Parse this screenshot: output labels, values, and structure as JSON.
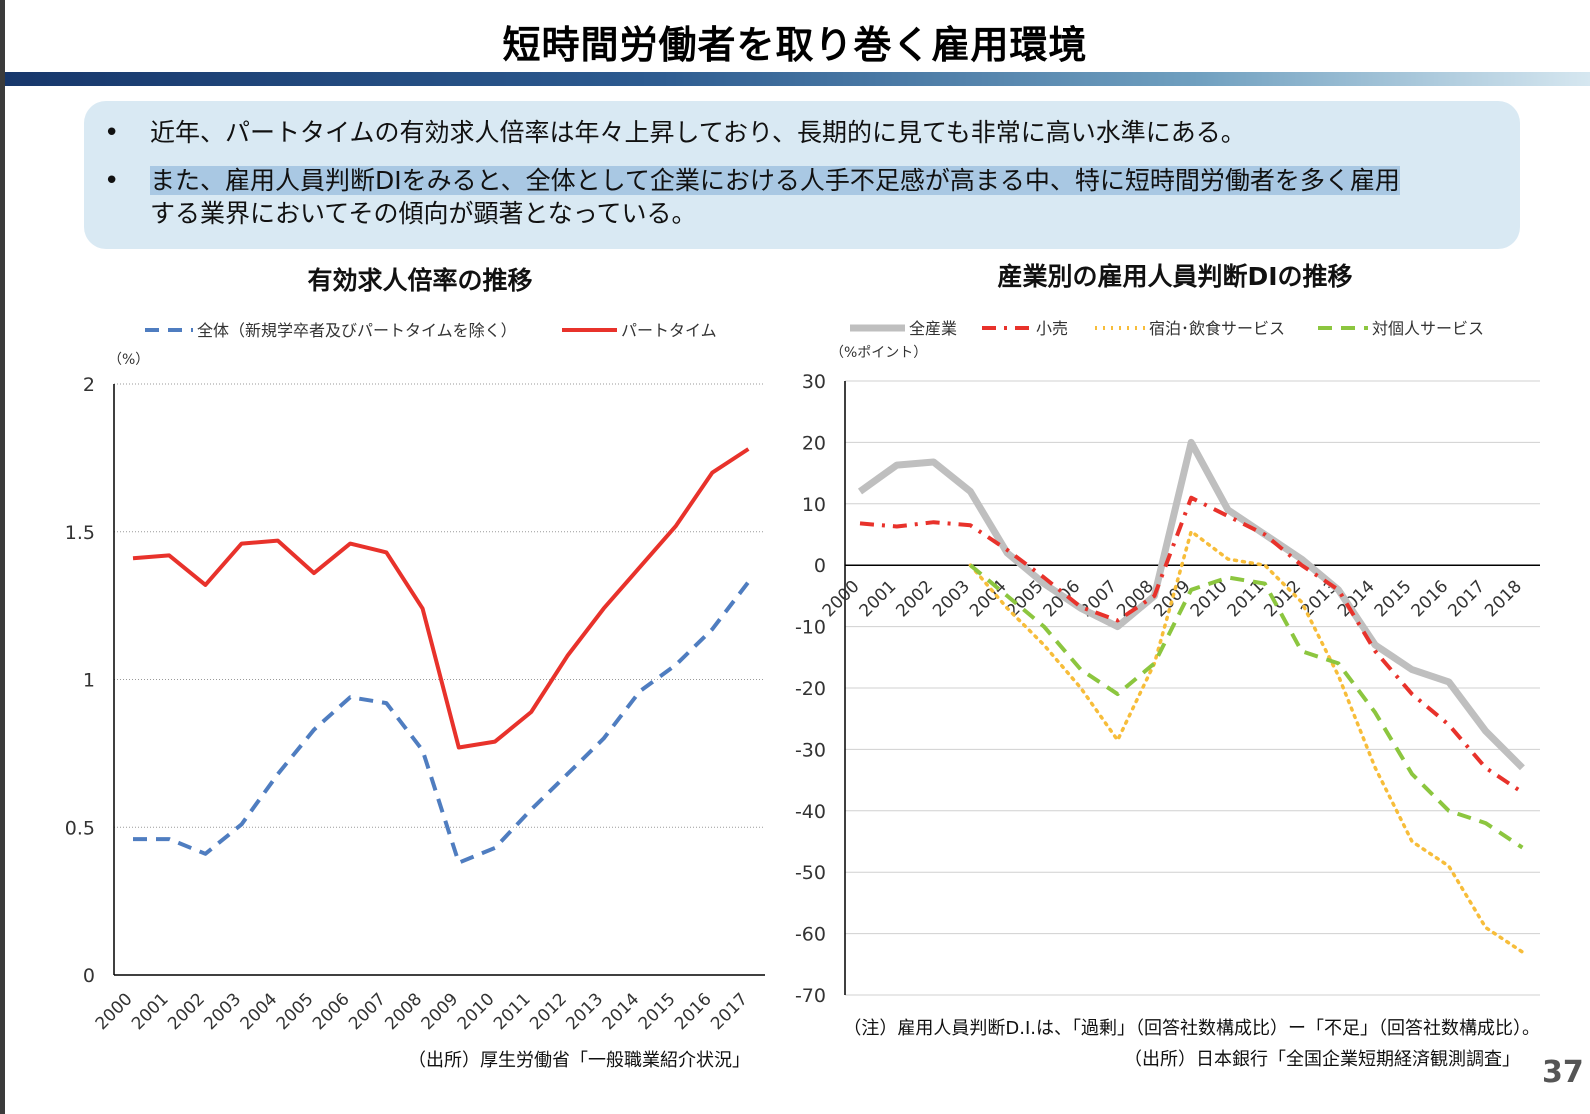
{
  "slide": {
    "title": "短時間労働者を取り巻く雇用環境",
    "bullets": [
      {
        "text": "近年、パートタイムの有効求人倍率は年々上昇しており、長期的に見ても非常に高い水準にある。"
      },
      {
        "highlight": "また、雇用人員判断DIをみると、全体として企業における人手不足感が高まる中、特に短時間労働者を多く雇用",
        "text": "する業界においてその傾向が顕著となっている。"
      }
    ],
    "page_number": "37"
  },
  "chart_data": [
    {
      "type": "line",
      "title": "有効求人倍率の推移",
      "unit_label": "（%）",
      "categories": [
        "2000",
        "2001",
        "2002",
        "2003",
        "2004",
        "2005",
        "2006",
        "2007",
        "2008",
        "2009",
        "2010",
        "2011",
        "2012",
        "2013",
        "2014",
        "2015",
        "2016",
        "2017"
      ],
      "series": [
        {
          "name": "全体（新規学卒者及びパートタイムを除く）",
          "color": "#4f7dc0",
          "style": "dashed",
          "values": [
            0.46,
            0.46,
            0.41,
            0.51,
            0.68,
            0.83,
            0.94,
            0.92,
            0.76,
            0.38,
            0.43,
            0.56,
            0.68,
            0.8,
            0.96,
            1.05,
            1.17,
            1.33
          ]
        },
        {
          "name": "パートタイム",
          "color": "#e8322b",
          "style": "solid",
          "values": [
            1.41,
            1.42,
            1.32,
            1.46,
            1.47,
            1.36,
            1.46,
            1.43,
            1.24,
            0.77,
            0.79,
            0.89,
            1.08,
            1.24,
            1.38,
            1.52,
            1.7,
            1.78
          ]
        }
      ],
      "ylim": [
        0,
        2
      ],
      "yticks": [
        "0",
        "0.5",
        "1",
        "1.5",
        "2"
      ],
      "grid": true,
      "legend": "top",
      "source": "（出所）厚生労働省「一般職業紹介状況」"
    },
    {
      "type": "line",
      "title": "産業別の雇用人員判断DIの推移",
      "unit_label": "（%ポイント）",
      "categories": [
        "2000",
        "2001",
        "2002",
        "2003",
        "2004",
        "2005",
        "2006",
        "2007",
        "2008",
        "2009",
        "2010",
        "2011",
        "2012",
        "2013",
        "2014",
        "2015",
        "2016",
        "2017",
        "2018"
      ],
      "series": [
        {
          "name": "全産業",
          "color": "#bfbfbf",
          "style": "solid-thick",
          "values": [
            12,
            16.3,
            16.8,
            12,
            2,
            -3,
            -7,
            -10,
            -5,
            20,
            9,
            5,
            1,
            -4,
            -13,
            -17,
            -19,
            -27,
            -33
          ]
        },
        {
          "name": "小売",
          "color": "#e8322b",
          "style": "dashdot",
          "values": [
            6.8,
            6.3,
            7,
            6.5,
            2.5,
            -2,
            -6.8,
            -9,
            -5,
            11,
            8,
            5,
            0,
            -4,
            -14,
            -21,
            -26,
            -33,
            -37
          ]
        },
        {
          "name": "宿泊･飲食サービス",
          "color": "#f7bd3a",
          "style": "dotted",
          "values": [
            null,
            null,
            null,
            0,
            -7,
            -13,
            -20,
            -28.5,
            -16,
            5.5,
            1,
            0,
            -6,
            -18,
            -33,
            -45,
            -49,
            -59,
            -63
          ]
        },
        {
          "name": "対個人サービス",
          "color": "#8cc63f",
          "style": "dashed",
          "values": [
            null,
            null,
            null,
            0,
            -5,
            -10,
            -17,
            -21,
            -16,
            -4,
            -2,
            -3,
            -14,
            -16,
            -24,
            -34,
            -40,
            -42,
            -46
          ]
        }
      ],
      "ylim": [
        -70,
        30
      ],
      "yticks": [
        "-70",
        "-60",
        "-50",
        "-40",
        "-30",
        "-20",
        "-10",
        "0",
        "10",
        "20",
        "30"
      ],
      "grid": true,
      "legend": "top",
      "note": "（注）雇用人員判断D.I.は、「過剰」（回答社数構成比）ー「不足」（回答社数構成比）。",
      "source": "（出所）日本銀行「全国企業短期経済観測調査」"
    }
  ]
}
